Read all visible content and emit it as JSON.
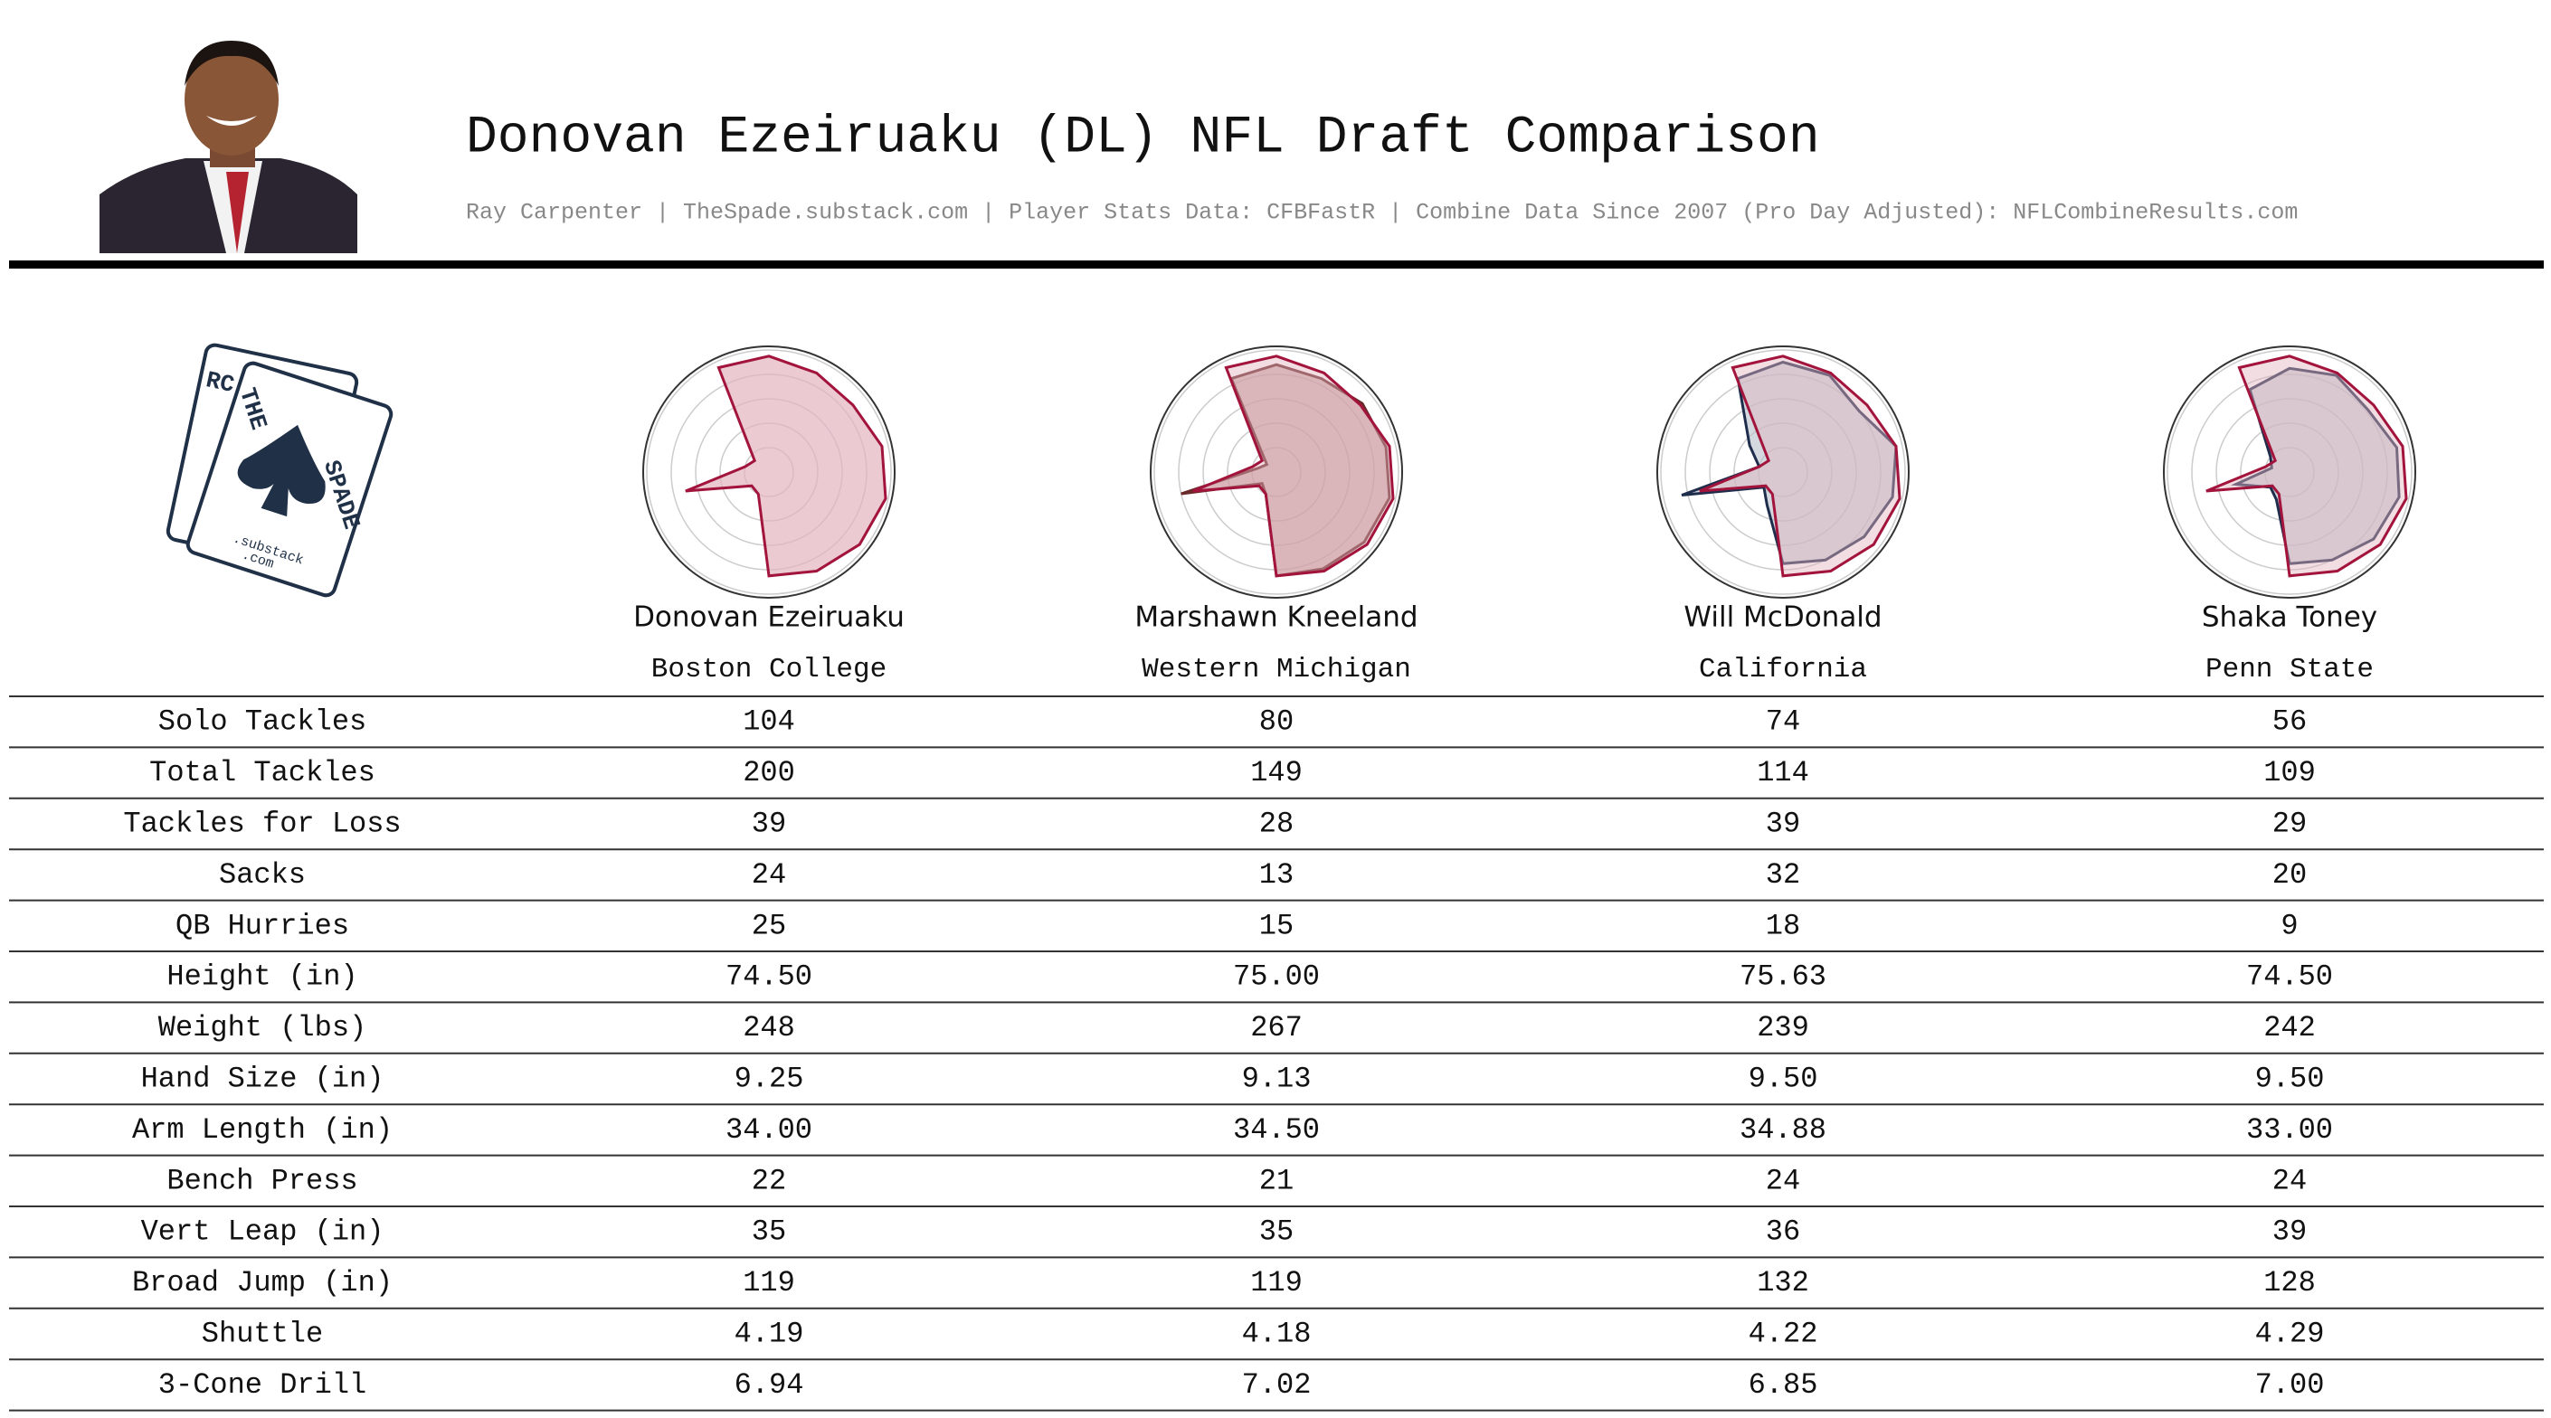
{
  "header": {
    "title": "Donovan Ezeiruaku (DL) NFL Draft Comparison",
    "subtitle": "Ray Carpenter | TheSpade.substack.com | Player Stats Data: CFBFastR | Combine Data Since 2007 (Pro Day Adjusted): NFLCombineResults.com"
  },
  "logo": {
    "card": "RC",
    "word1": "THE",
    "word2": "SPADE",
    "footer": [
      ".substack",
      ".com"
    ]
  },
  "chart_data": {
    "type": "radar",
    "rlim": [
      0,
      100
    ],
    "players": [
      {
        "name": "Donovan Ezeiruaku",
        "school": "Boston College",
        "color": "#a3143c",
        "fill": "#e3b3bf",
        "radar": [
          95,
          90,
          88,
          95,
          98,
          95,
          90,
          85,
          20,
          18,
          70,
          20,
          15,
          95
        ]
      },
      {
        "name": "Marshawn Kneeland",
        "school": "Western Michigan",
        "color": "#6b2a2a",
        "fill": "#b88a8a",
        "radar": [
          88,
          85,
          90,
          92,
          95,
          92,
          88,
          85,
          20,
          15,
          80,
          15,
          10,
          85
        ]
      },
      {
        "name": "Will McDonald",
        "school": "California",
        "color": "#1f2d4d",
        "fill": "#b8bfcc",
        "radar": [
          90,
          88,
          80,
          95,
          92,
          85,
          80,
          75,
          30,
          20,
          85,
          20,
          35,
          85
        ]
      },
      {
        "name": "Shaka Toney",
        "school": "Penn State",
        "color": "#1f2d4d",
        "fill": "#b8bfcc",
        "radar": [
          85,
          88,
          82,
          90,
          92,
          88,
          80,
          75,
          25,
          20,
          45,
          15,
          20,
          75
        ]
      }
    ]
  },
  "table": {
    "rows": [
      {
        "label": "Solo Tackles",
        "values": [
          "104",
          "80",
          "74",
          "56"
        ]
      },
      {
        "label": "Total Tackles",
        "values": [
          "200",
          "149",
          "114",
          "109"
        ]
      },
      {
        "label": "Tackles for Loss",
        "values": [
          "39",
          "28",
          "39",
          "29"
        ]
      },
      {
        "label": "Sacks",
        "values": [
          "24",
          "13",
          "32",
          "20"
        ]
      },
      {
        "label": "QB Hurries",
        "values": [
          "25",
          "15",
          "18",
          "9"
        ]
      },
      {
        "label": "Height (in)",
        "values": [
          "74.50",
          "75.00",
          "75.63",
          "74.50"
        ]
      },
      {
        "label": "Weight (lbs)",
        "values": [
          "248",
          "267",
          "239",
          "242"
        ]
      },
      {
        "label": "Hand Size (in)",
        "values": [
          "9.25",
          "9.13",
          "9.50",
          "9.50"
        ]
      },
      {
        "label": "Arm Length (in)",
        "values": [
          "34.00",
          "34.50",
          "34.88",
          "33.00"
        ]
      },
      {
        "label": "Bench Press",
        "values": [
          "22",
          "21",
          "24",
          "24"
        ]
      },
      {
        "label": "Vert Leap (in)",
        "values": [
          "35",
          "35",
          "36",
          "39"
        ]
      },
      {
        "label": "Broad Jump (in)",
        "values": [
          "119",
          "119",
          "132",
          "128"
        ]
      },
      {
        "label": "Shuttle",
        "values": [
          "4.19",
          "4.18",
          "4.22",
          "4.29"
        ]
      },
      {
        "label": "3-Cone Drill",
        "values": [
          "6.94",
          "7.02",
          "6.85",
          "7.00"
        ]
      }
    ]
  }
}
